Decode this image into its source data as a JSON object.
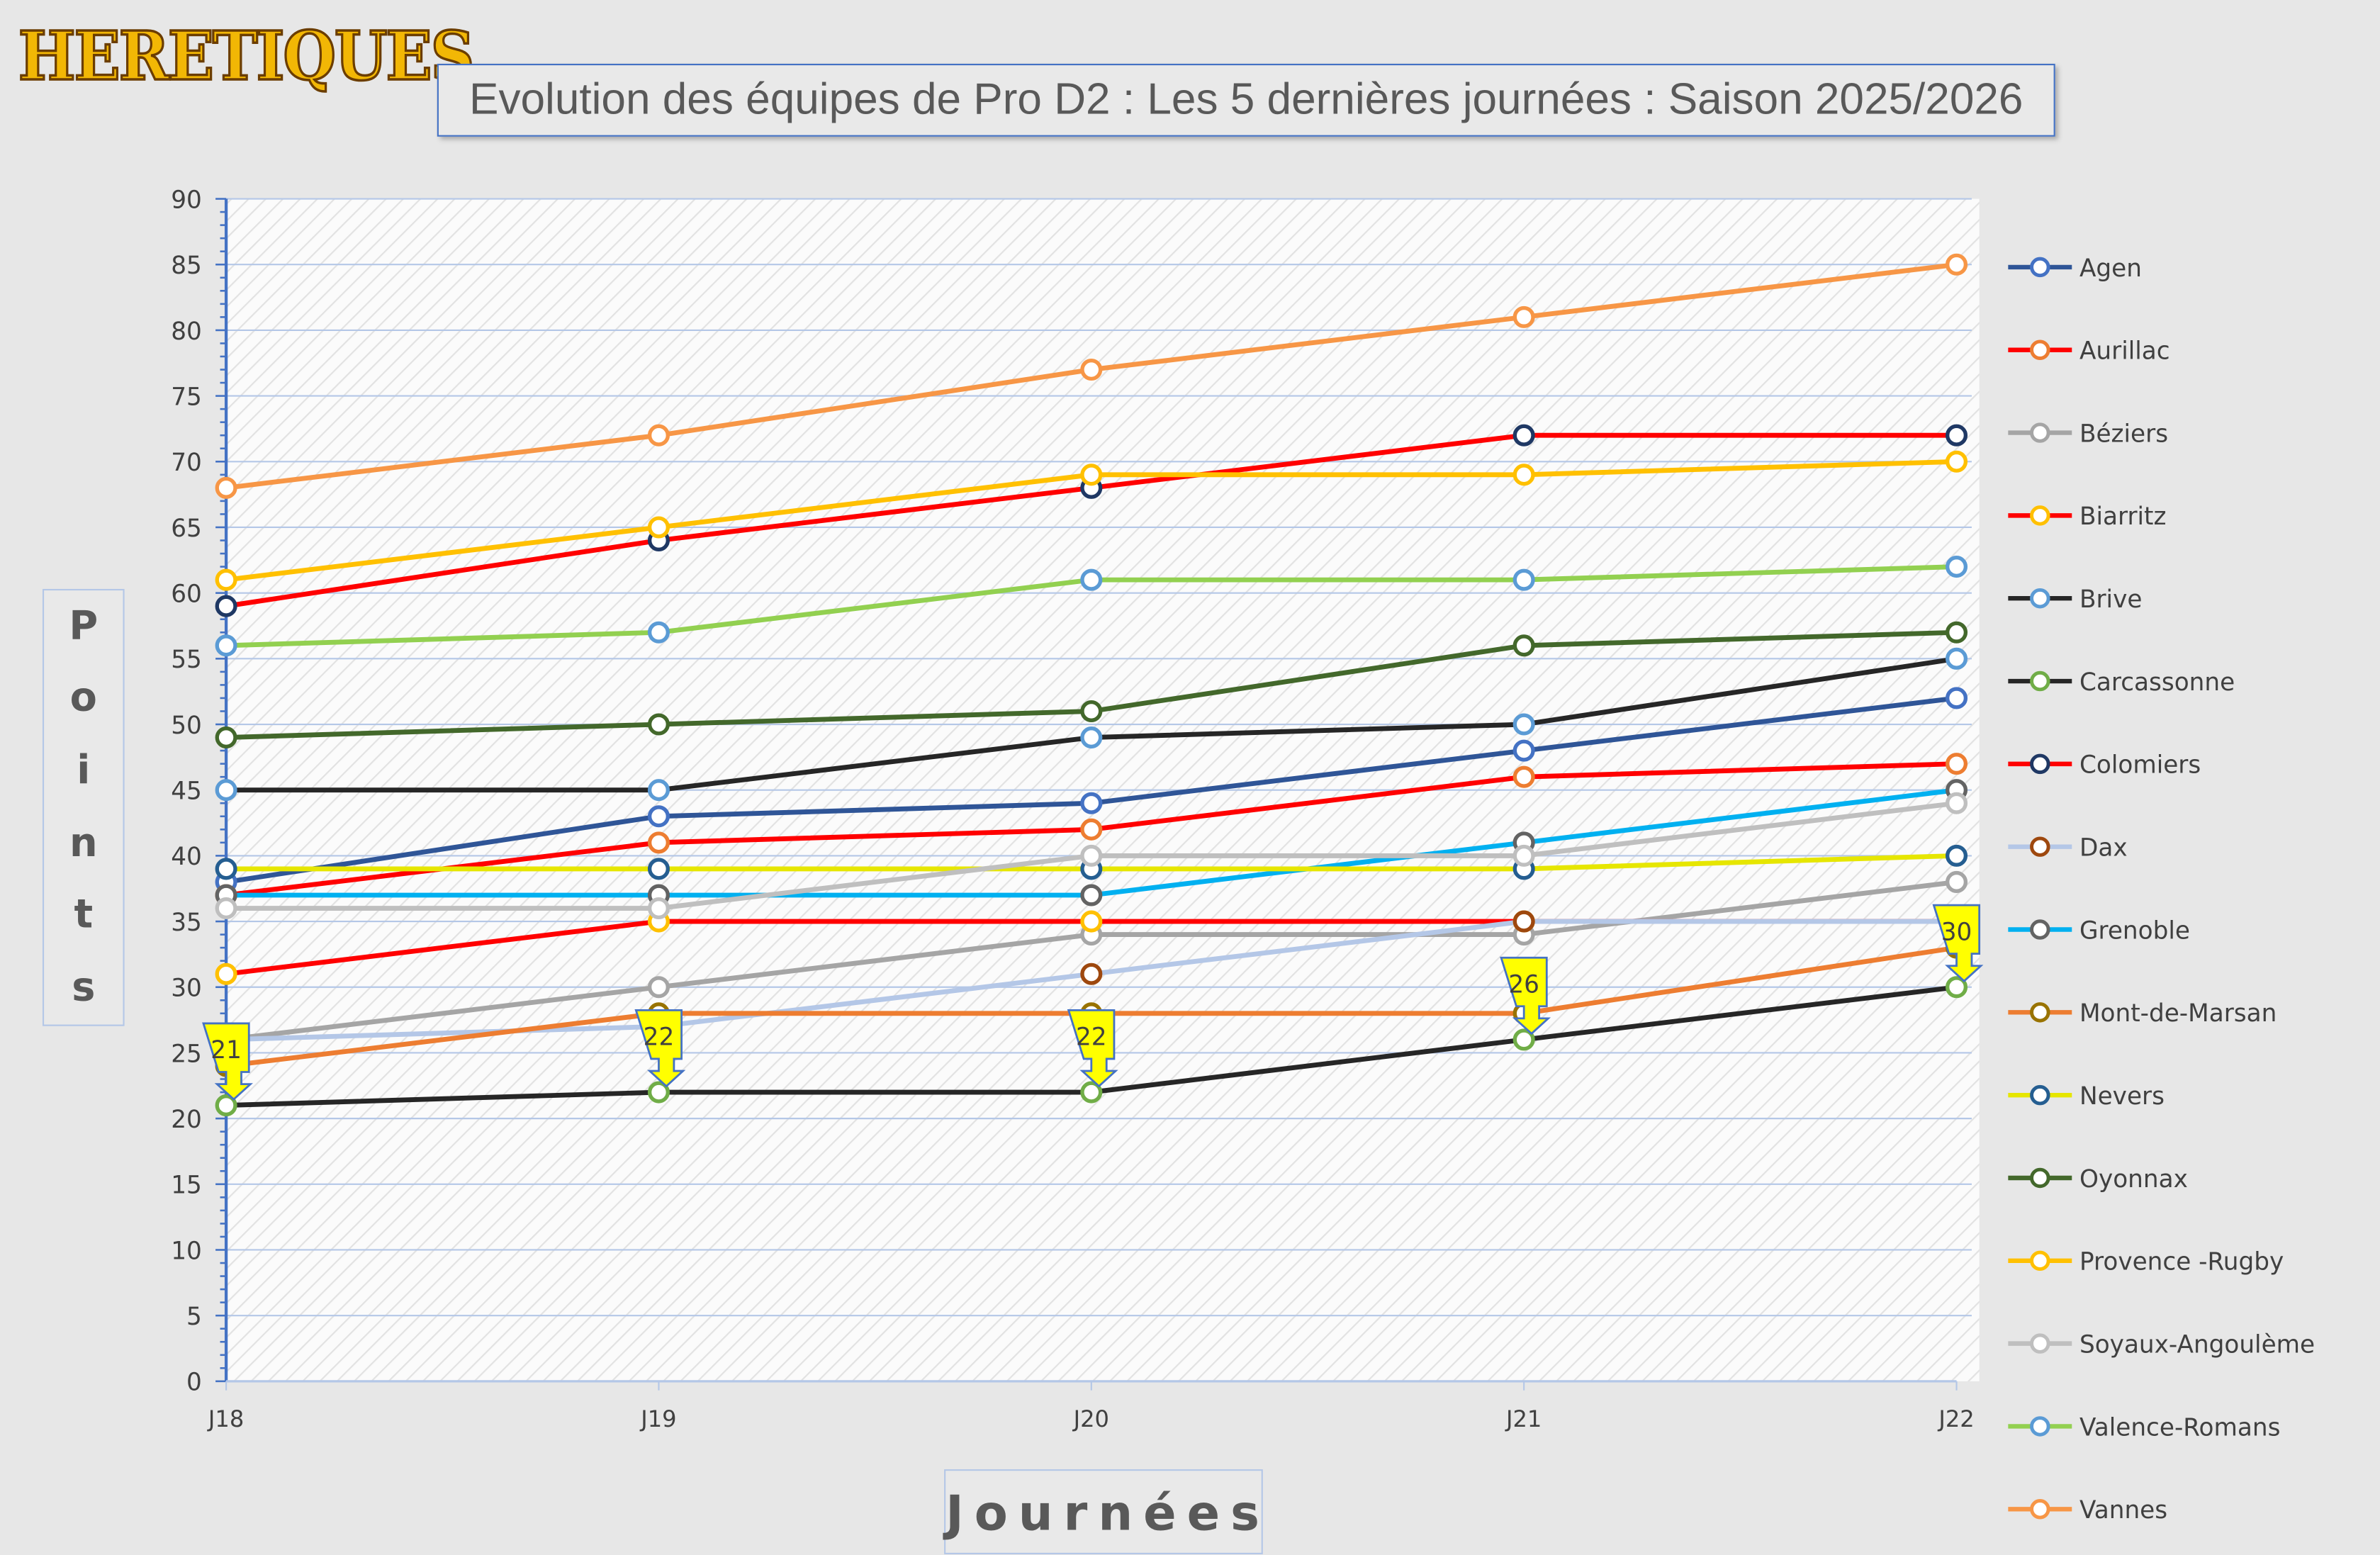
{
  "logo": "HERETIQUES",
  "chart_data": {
    "type": "line",
    "title": "Evolution des équipes de Pro D2 : Les 5 dernières journées : Saison 2025/2026",
    "xlabel": "Journées",
    "ylabel": "Points",
    "categories": [
      "J18",
      "J19",
      "J20",
      "J21",
      "J22"
    ],
    "ylim": [
      0,
      90
    ],
    "ytick_step": 5,
    "grid": true,
    "legend": "right",
    "series": [
      {
        "name": "Agen",
        "values": [
          38,
          43,
          44,
          48,
          52
        ],
        "line": "#2F5597",
        "marker": "#4472C4"
      },
      {
        "name": "Aurillac",
        "values": [
          37,
          41,
          42,
          46,
          47
        ],
        "line": "#FF0000",
        "marker": "#ED7D31"
      },
      {
        "name": "Béziers",
        "values": [
          26,
          30,
          34,
          34,
          38
        ],
        "line": "#A5A5A5",
        "marker": "#A5A5A5"
      },
      {
        "name": "Biarritz",
        "values": [
          31,
          35,
          35,
          35,
          35
        ],
        "line": "#FF0000",
        "marker": "#FFC000"
      },
      {
        "name": "Brive",
        "values": [
          45,
          45,
          49,
          50,
          55
        ],
        "line": "#262626",
        "marker": "#5B9BD5"
      },
      {
        "name": "Carcassonne",
        "values": [
          21,
          22,
          22,
          26,
          30
        ],
        "line": "#262626",
        "marker": "#70AD47"
      },
      {
        "name": "Colomiers",
        "values": [
          59,
          64,
          68,
          72,
          72
        ],
        "line": "#FF0000",
        "marker": "#1F3864"
      },
      {
        "name": "Dax",
        "values": [
          26,
          27,
          31,
          35,
          35
        ],
        "line": "#B4C7E7",
        "marker": "#9E480E"
      },
      {
        "name": "Grenoble",
        "values": [
          37,
          37,
          37,
          41,
          45
        ],
        "line": "#00B0F0",
        "marker": "#636363"
      },
      {
        "name": "Mont-de-Marsan",
        "values": [
          24,
          28,
          28,
          28,
          33
        ],
        "line": "#ED7D31",
        "marker": "#997300"
      },
      {
        "name": "Nevers",
        "values": [
          39,
          39,
          39,
          39,
          40
        ],
        "line": "#E6E600",
        "marker": "#255E91"
      },
      {
        "name": "Oyonnax",
        "values": [
          49,
          50,
          51,
          56,
          57
        ],
        "line": "#43682B",
        "marker": "#43682B"
      },
      {
        "name": "Provence -Rugby",
        "values": [
          61,
          65,
          69,
          69,
          70
        ],
        "line": "#FFC000",
        "marker": "#FFC000"
      },
      {
        "name": "Soyaux-Angoulème",
        "values": [
          36,
          36,
          40,
          40,
          44
        ],
        "line": "#BFBFBF",
        "marker": "#BFBFBF"
      },
      {
        "name": "Valence-Romans",
        "values": [
          56,
          57,
          61,
          61,
          62
        ],
        "line": "#92D050",
        "marker": "#5B9BD5"
      },
      {
        "name": "Vannes",
        "values": [
          68,
          72,
          77,
          81,
          85
        ],
        "line": "#F79646",
        "marker": "#F79646"
      }
    ],
    "callouts": {
      "series": "Carcassonne",
      "labels": [
        "21",
        "22",
        "22",
        "26",
        "30"
      ],
      "color": "#FFFF00"
    }
  }
}
